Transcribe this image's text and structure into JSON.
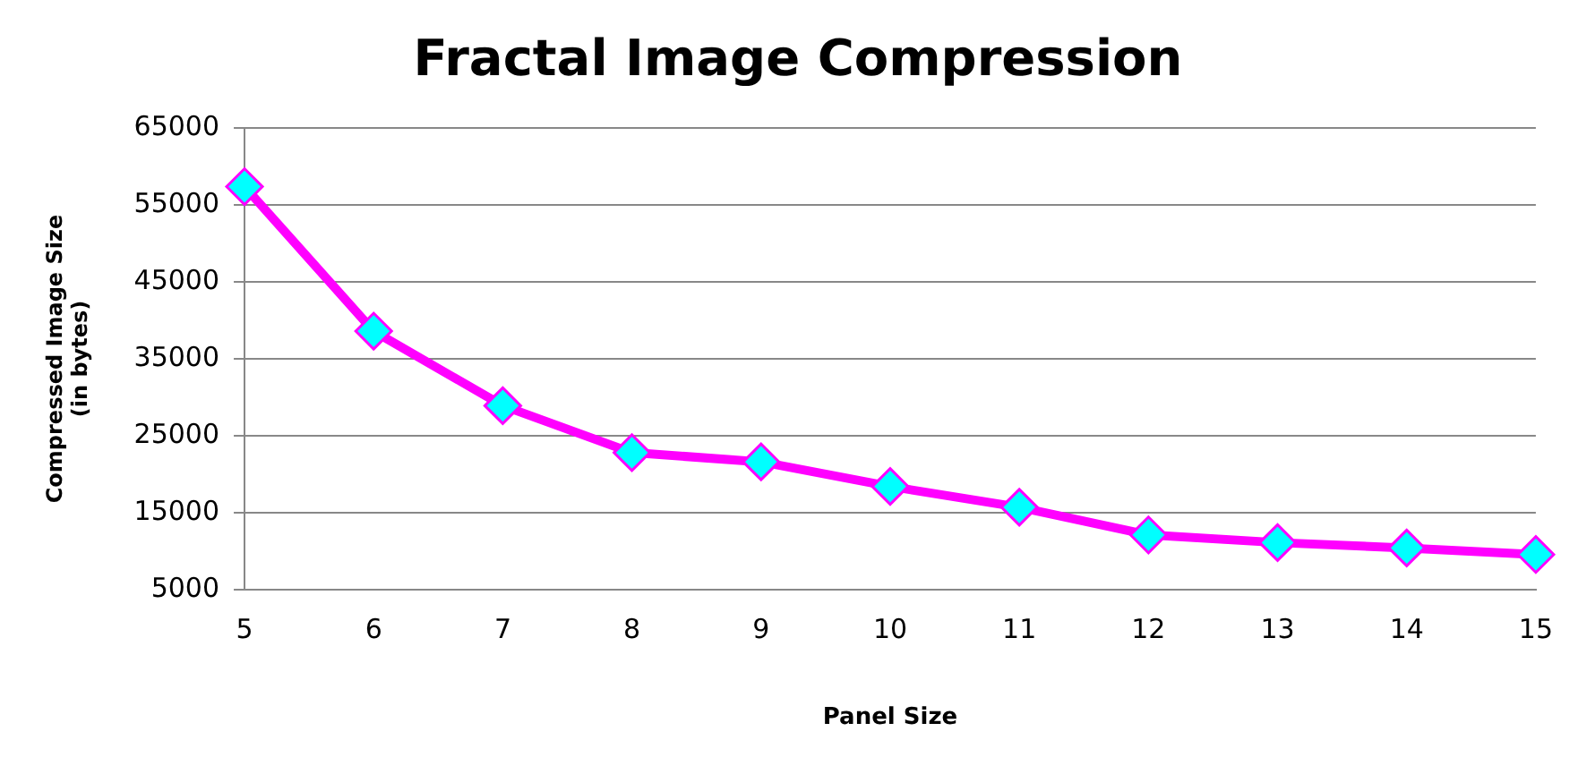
{
  "chart_data": {
    "type": "line",
    "title": "Fractal Image Compression",
    "xlabel": "Panel Size",
    "ylabel": [
      "Compressed Image Size",
      "(in bytes)"
    ],
    "categories": [
      "5",
      "6",
      "7",
      "8",
      "9",
      "10",
      "11",
      "12",
      "13",
      "14",
      "15"
    ],
    "series": [
      {
        "color": "#ff00ff",
        "values": [
          57400,
          38600,
          28900,
          22800,
          21600,
          18400,
          15700,
          12100,
          11100,
          10400,
          9550
        ]
      }
    ],
    "ylim": [
      5000,
      65000
    ],
    "yticks": [
      5000,
      15000,
      25000,
      35000,
      45000,
      55000,
      65000
    ],
    "grid": "y",
    "legend": false,
    "marker": "diamond",
    "line_style": "solid"
  }
}
